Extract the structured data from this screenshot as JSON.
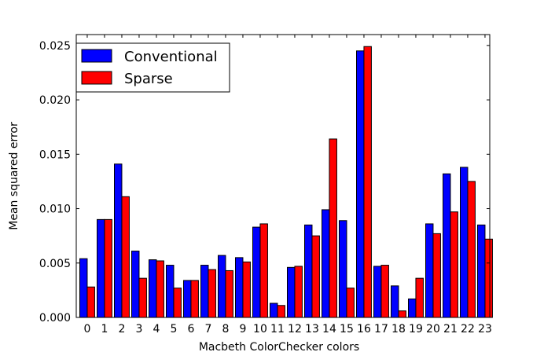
{
  "chart_data": {
    "type": "bar",
    "xlabel": "Macbeth ColorChecker colors",
    "ylabel": "Mean squared error",
    "ylim": [
      0,
      0.026
    ],
    "yticks": [
      "0.000",
      "0.005",
      "0.010",
      "0.015",
      "0.020",
      "0.025"
    ],
    "categories": [
      "0",
      "1",
      "2",
      "3",
      "4",
      "5",
      "6",
      "7",
      "8",
      "9",
      "10",
      "11",
      "12",
      "13",
      "14",
      "15",
      "16",
      "17",
      "18",
      "19",
      "20",
      "21",
      "22",
      "23"
    ],
    "series": [
      {
        "name": "Conventional",
        "color": "#0000ff",
        "values": [
          0.0054,
          0.009,
          0.0141,
          0.0061,
          0.0053,
          0.0048,
          0.0034,
          0.0048,
          0.0057,
          0.0055,
          0.0083,
          0.0013,
          0.0046,
          0.0085,
          0.0099,
          0.0089,
          0.0245,
          0.0047,
          0.0029,
          0.0017,
          0.0086,
          0.0132,
          0.0138,
          0.0085
        ]
      },
      {
        "name": "Sparse",
        "color": "#ff0000",
        "values": [
          0.0028,
          0.009,
          0.0111,
          0.0036,
          0.0052,
          0.0027,
          0.0034,
          0.0044,
          0.0043,
          0.0051,
          0.0086,
          0.0011,
          0.0047,
          0.0075,
          0.0164,
          0.0027,
          0.0249,
          0.0048,
          0.0006,
          0.0036,
          0.0077,
          0.0097,
          0.0125,
          0.0072
        ]
      }
    ],
    "legend": "top-left",
    "grid": false
  }
}
